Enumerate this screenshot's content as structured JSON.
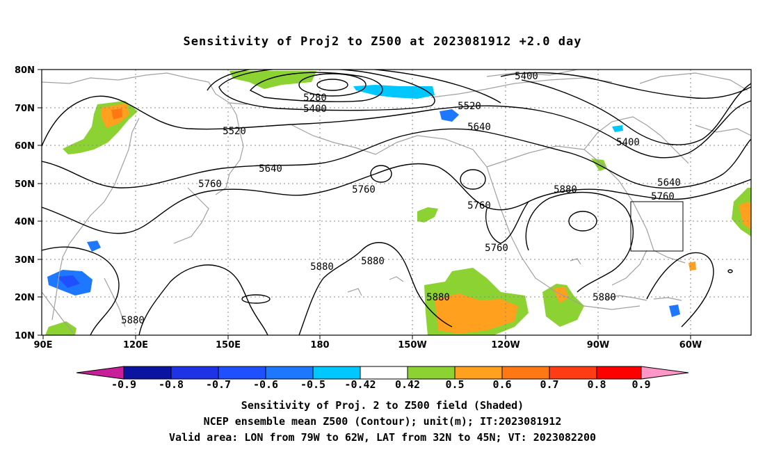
{
  "figure": {
    "title": "Sensitivity of Proj2 to Z500 at 2023081912 +2.0 day",
    "caption_lines": [
      "Sensitivity of Proj. 2 to Z500 field (Shaded)",
      "NCEP ensemble mean Z500 (Contour); unit(m); IT:2023081912",
      "Valid area: LON from 79W to 62W, LAT from 32N to 45N; VT: 2023082200"
    ]
  },
  "map": {
    "lon_labels": [
      "90E",
      "120E",
      "150E",
      "180",
      "150W",
      "120W",
      "90W",
      "60W"
    ],
    "lat_labels": [
      "80N",
      "70N",
      "60N",
      "50N",
      "40N",
      "30N",
      "20N",
      "10N"
    ],
    "contour_labels": [
      "5280",
      "5400",
      "5400",
      "5400",
      "5520",
      "5520",
      "5640",
      "5640",
      "5640",
      "5760",
      "5760",
      "5760",
      "5760",
      "5760",
      "5880",
      "5880",
      "5880",
      "5880",
      "5880",
      "5880"
    ],
    "valid_area": {
      "lon_range": "79W to 62W",
      "lat_range": "32N to 45N"
    }
  },
  "colorbar": {
    "tick_labels": [
      "-0.9",
      "-0.8",
      "-0.7",
      "-0.6",
      "-0.5",
      "-0.42",
      "0.42",
      "0.5",
      "0.6",
      "0.7",
      "0.8",
      "0.9"
    ],
    "colors": [
      "#c81e9a",
      "#0a14a0",
      "#1e32e6",
      "#1e50ff",
      "#1e78ff",
      "#00c8ff",
      "#ffffff",
      "#8cd232",
      "#ffa01e",
      "#ff7814",
      "#ff3c14",
      "#ff0000",
      "#ff96c8"
    ]
  },
  "shading_colors": {
    "blue": "#1e50ff",
    "cyan": "#00c8ff",
    "green": "#8cd232",
    "orange": "#ffa01e",
    "dark_orange": "#ff7814"
  }
}
